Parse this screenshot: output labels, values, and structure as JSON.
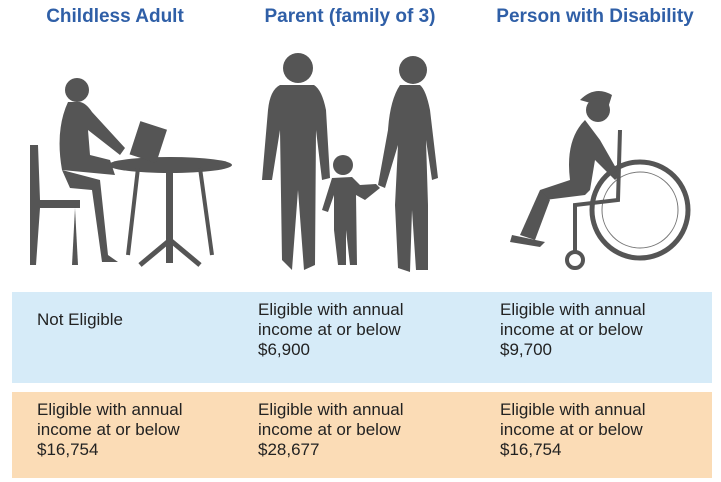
{
  "columns": [
    "Childless Adult",
    "Parent (family of 3)",
    "Person with Disability"
  ],
  "rows": [
    [
      "Not Eligible",
      "Eligible with annual income at or below $6,900",
      "Eligible with annual income at or below $9,700"
    ],
    [
      "Eligible with annual income at or below $16,754",
      "Eligible with annual income at or below $28,677",
      "Eligible with annual income at or below $16,754"
    ]
  ]
}
